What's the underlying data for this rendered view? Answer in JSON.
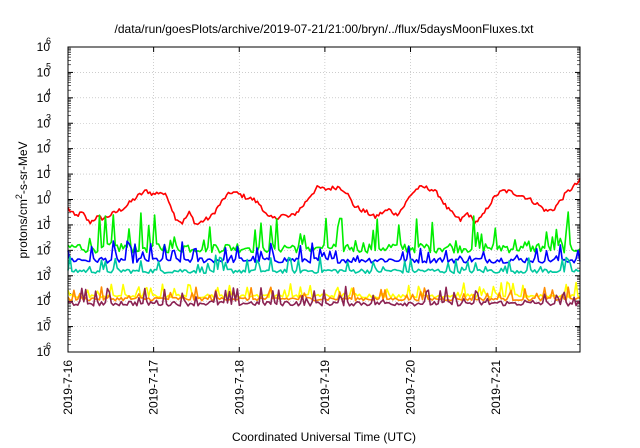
{
  "chart_data": {
    "type": "line",
    "title": "/data/run/goesPlots/archive/2019-07-21/21:00/bryn/../flux/5daysMoonFluxes.txt",
    "xlabel": "Coordinated Universal Time (UTC)",
    "ylabel_parts": {
      "base": "protons/cm",
      "sup": "2",
      "rest": "-s-sr-MeV"
    },
    "y_scale": "log",
    "ylim": [
      1e-06,
      1000000.0
    ],
    "y_ticks": [
      {
        "value": 1e-06,
        "base": "10",
        "exp": "-6"
      },
      {
        "value": 1e-05,
        "base": "10",
        "exp": "-5"
      },
      {
        "value": 0.0001,
        "base": "10",
        "exp": "-4"
      },
      {
        "value": 0.001,
        "base": "10",
        "exp": "-3"
      },
      {
        "value": 0.01,
        "base": "10",
        "exp": "-2"
      },
      {
        "value": 0.1,
        "base": "10",
        "exp": "-1"
      },
      {
        "value": 1,
        "base": "10",
        "exp": "0"
      },
      {
        "value": 10.0,
        "base": "10",
        "exp": "1"
      },
      {
        "value": 100.0,
        "base": "10",
        "exp": "2"
      },
      {
        "value": 1000.0,
        "base": "10",
        "exp": "3"
      },
      {
        "value": 10000.0,
        "base": "10",
        "exp": "4"
      },
      {
        "value": 100000.0,
        "base": "10",
        "exp": "5"
      },
      {
        "value": 1000000.0,
        "base": "10",
        "exp": "6"
      }
    ],
    "xlim": [
      "2019-07-16 00:00",
      "2019-07-21 23:30"
    ],
    "x_ticks": [
      "2019-7-16",
      "2019-7-17",
      "2019-7-18",
      "2019-7-19",
      "2019-7-20",
      "2019-7-21"
    ],
    "grid": true,
    "legend": "none",
    "series": [
      {
        "color": "#ff0000",
        "x": [
          "2019-07-16 00:00",
          "2019-07-16 02:00",
          "2019-07-16 04:00",
          "2019-07-16 06:00",
          "2019-07-16 08:00",
          "2019-07-16 10:00",
          "2019-07-16 12:00",
          "2019-07-16 14:00",
          "2019-07-16 16:00",
          "2019-07-16 18:00",
          "2019-07-16 20:00",
          "2019-07-16 22:00",
          "2019-07-17 00:00",
          "2019-07-17 02:00",
          "2019-07-17 04:00",
          "2019-07-17 06:00",
          "2019-07-17 08:00",
          "2019-07-17 10:00",
          "2019-07-17 12:00",
          "2019-07-17 14:00",
          "2019-07-17 16:00",
          "2019-07-17 18:00",
          "2019-07-17 20:00",
          "2019-07-17 22:00",
          "2019-07-18 00:00",
          "2019-07-18 02:00",
          "2019-07-18 04:00",
          "2019-07-18 06:00",
          "2019-07-18 08:00",
          "2019-07-18 10:00",
          "2019-07-18 12:00",
          "2019-07-18 14:00",
          "2019-07-18 16:00",
          "2019-07-18 18:00",
          "2019-07-18 20:00",
          "2019-07-18 22:00",
          "2019-07-19 00:00",
          "2019-07-19 02:00",
          "2019-07-19 04:00",
          "2019-07-19 06:00",
          "2019-07-19 08:00",
          "2019-07-19 10:00",
          "2019-07-19 12:00",
          "2019-07-19 14:00",
          "2019-07-19 16:00",
          "2019-07-19 18:00",
          "2019-07-19 20:00",
          "2019-07-19 22:00",
          "2019-07-20 00:00",
          "2019-07-20 02:00",
          "2019-07-20 04:00",
          "2019-07-20 06:00",
          "2019-07-20 08:00",
          "2019-07-20 10:00",
          "2019-07-20 12:00",
          "2019-07-20 14:00",
          "2019-07-20 16:00",
          "2019-07-20 18:00",
          "2019-07-20 20:00",
          "2019-07-20 22:00",
          "2019-07-21 00:00",
          "2019-07-21 02:00",
          "2019-07-21 04:00",
          "2019-07-21 06:00",
          "2019-07-21 08:00",
          "2019-07-21 10:00",
          "2019-07-21 12:00",
          "2019-07-21 14:00",
          "2019-07-21 16:00",
          "2019-07-21 18:00",
          "2019-07-21 20:00",
          "2019-07-21 22:00",
          "2019-07-21 23:30"
        ],
        "values": [
          0.45,
          0.22,
          0.3,
          0.12,
          0.2,
          0.18,
          0.25,
          0.35,
          0.5,
          0.9,
          1.5,
          2.2,
          1.6,
          2.0,
          1.2,
          0.2,
          0.12,
          0.3,
          0.1,
          0.15,
          0.2,
          0.5,
          1.2,
          2.0,
          1.6,
          1.2,
          1.0,
          0.6,
          0.2,
          0.18,
          0.25,
          0.2,
          0.3,
          0.6,
          1.5,
          3.0,
          2.5,
          2.8,
          3.2,
          2.0,
          0.6,
          0.4,
          0.3,
          0.2,
          0.3,
          0.4,
          0.25,
          0.5,
          1.5,
          2.8,
          3.0,
          2.5,
          1.5,
          0.5,
          0.25,
          0.15,
          0.3,
          0.12,
          0.2,
          0.6,
          1.5,
          2.2,
          2.0,
          1.6,
          1.3,
          0.9,
          0.6,
          0.35,
          0.4,
          0.9,
          2.0,
          3.5,
          5.5
        ]
      },
      {
        "color": "#00ee00",
        "base": 0.012,
        "amp": 0.9
      },
      {
        "color": "#0000ff",
        "base": 0.004,
        "amp": 0.5
      },
      {
        "color": "#00c8a0",
        "base": 0.0015,
        "amp": 0.4
      },
      {
        "color": "#ffff00",
        "base": 0.00016,
        "amp": 0.35
      },
      {
        "color": "#ff8c00",
        "base": 0.00012,
        "amp": 0.3
      },
      {
        "color": "#8b2252",
        "base": 8e-05,
        "amp": 0.45
      }
    ]
  }
}
